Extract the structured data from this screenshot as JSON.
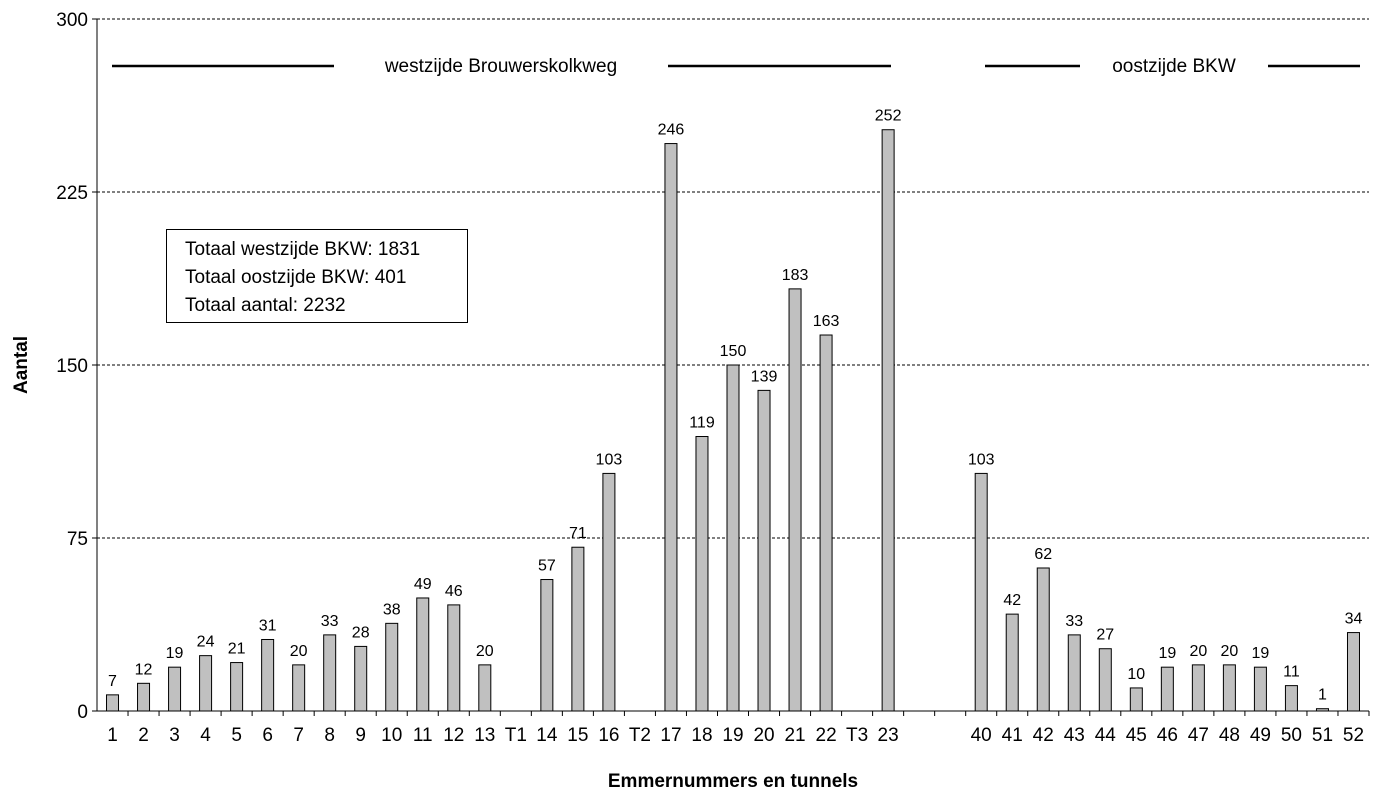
{
  "chart_data": {
    "type": "bar",
    "title": "…, …",
    "xlabel": "Emmernummers en tunnels",
    "ylabel": "Aantal",
    "ylim": [
      0,
      300
    ],
    "yticks": [
      "0",
      "75",
      "150",
      "225",
      "300"
    ],
    "grid": "horizontal dashed",
    "categories": [
      "1",
      "2",
      "3",
      "4",
      "5",
      "6",
      "7",
      "8",
      "9",
      "10",
      "11",
      "12",
      "13",
      "T1",
      "14",
      "15",
      "16",
      "T2",
      "17",
      "18",
      "19",
      "20",
      "21",
      "22",
      "T3",
      "23",
      "",
      "",
      "40",
      "41",
      "42",
      "43",
      "44",
      "45",
      "46",
      "47",
      "48",
      "49",
      "50",
      "51",
      "52"
    ],
    "values": [
      7,
      12,
      19,
      24,
      21,
      31,
      20,
      33,
      28,
      38,
      49,
      46,
      20,
      null,
      57,
      71,
      103,
      null,
      246,
      119,
      150,
      139,
      183,
      163,
      null,
      252,
      null,
      null,
      103,
      42,
      62,
      33,
      27,
      10,
      19,
      20,
      20,
      19,
      11,
      1,
      34
    ],
    "bar_color": "#c0c0c0",
    "section_labels": [
      "westzijde Brouwerskolkweg",
      "oostzijde BKW"
    ],
    "summary_box": [
      "Totaal westzijde BKW:  1831",
      "Totaal oostzijde BKW:  401",
      "Totaal aantal:  2232"
    ]
  }
}
